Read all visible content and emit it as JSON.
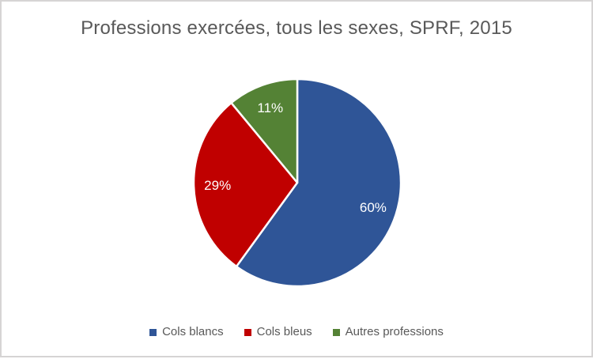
{
  "frame": {
    "background_color": "#FFFFFF",
    "border_color": "#D6D4D4"
  },
  "chart_data": {
    "type": "pie",
    "title": "Professions exercées, tous les sexes, SPRF, 2015",
    "title_color": "#595959",
    "categories": [
      "Cols blancs",
      "Cols bleus",
      "Autres professions"
    ],
    "values": [
      60,
      29,
      11
    ],
    "unit": "%",
    "data_labels": [
      "60%",
      "29%",
      "11%"
    ],
    "colors": [
      "#2F5597",
      "#C00000",
      "#548235"
    ],
    "data_label_color": "#FFFFFF",
    "separator_color": "#FFFFFF",
    "start_angle_deg": 0,
    "direction": "clockwise",
    "grid": "off",
    "legend_position": "bottom",
    "legend_text_color": "#595959",
    "legend": [
      {
        "label": "Cols blancs",
        "color": "#2F5597"
      },
      {
        "label": "Cols bleus",
        "color": "#C00000"
      },
      {
        "label": "Autres professions",
        "color": "#548235"
      }
    ]
  }
}
